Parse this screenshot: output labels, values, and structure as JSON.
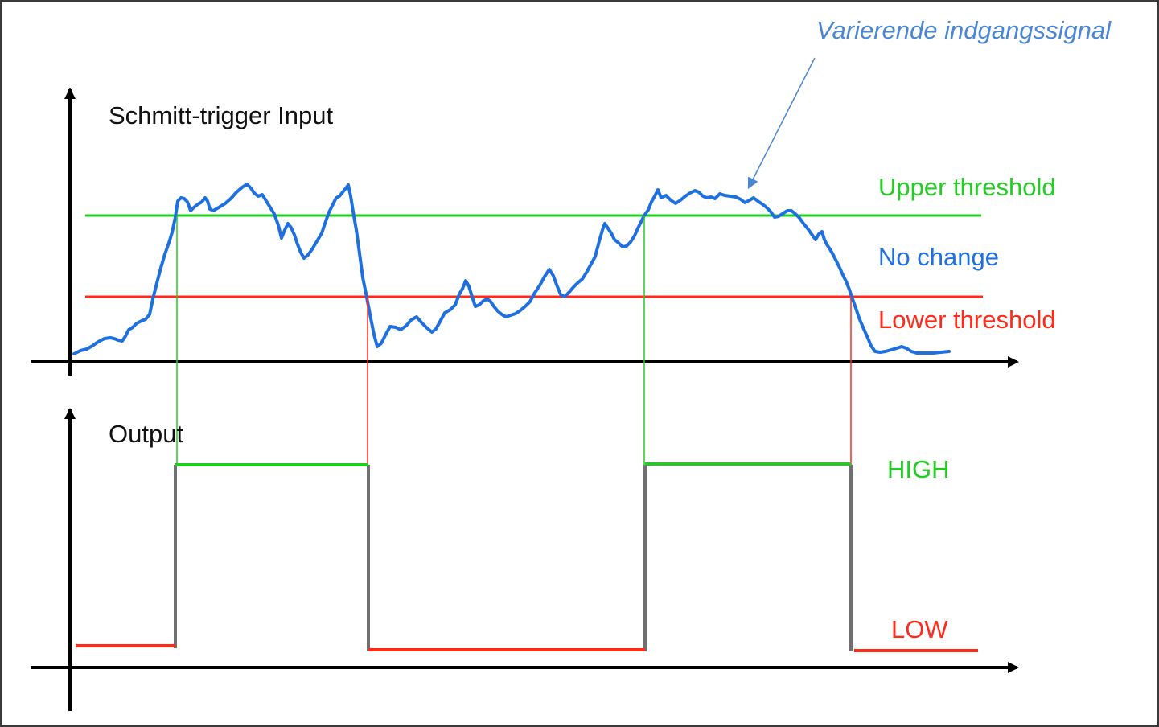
{
  "colors": {
    "background": "#ffffff",
    "frame": "#3a3a3a",
    "axis": "#000000",
    "signal": "#1e6fe0",
    "upper_threshold": "#22cc22",
    "lower_threshold": "#ff2a1a",
    "high_level": "#22cc22",
    "low_level": "#ff2a1a",
    "output_edge": "#707070",
    "callout": "#4a86d4",
    "text": "#111111"
  },
  "callout": {
    "text": "Varierende indgangssignal"
  },
  "input_panel": {
    "title": "Schmitt-trigger Input",
    "labels": {
      "upper": "Upper threshold",
      "no_change": "No change",
      "lower": "Lower threshold"
    }
  },
  "output_panel": {
    "title": "Output",
    "labels": {
      "high": "HIGH",
      "low": "LOW"
    }
  }
}
